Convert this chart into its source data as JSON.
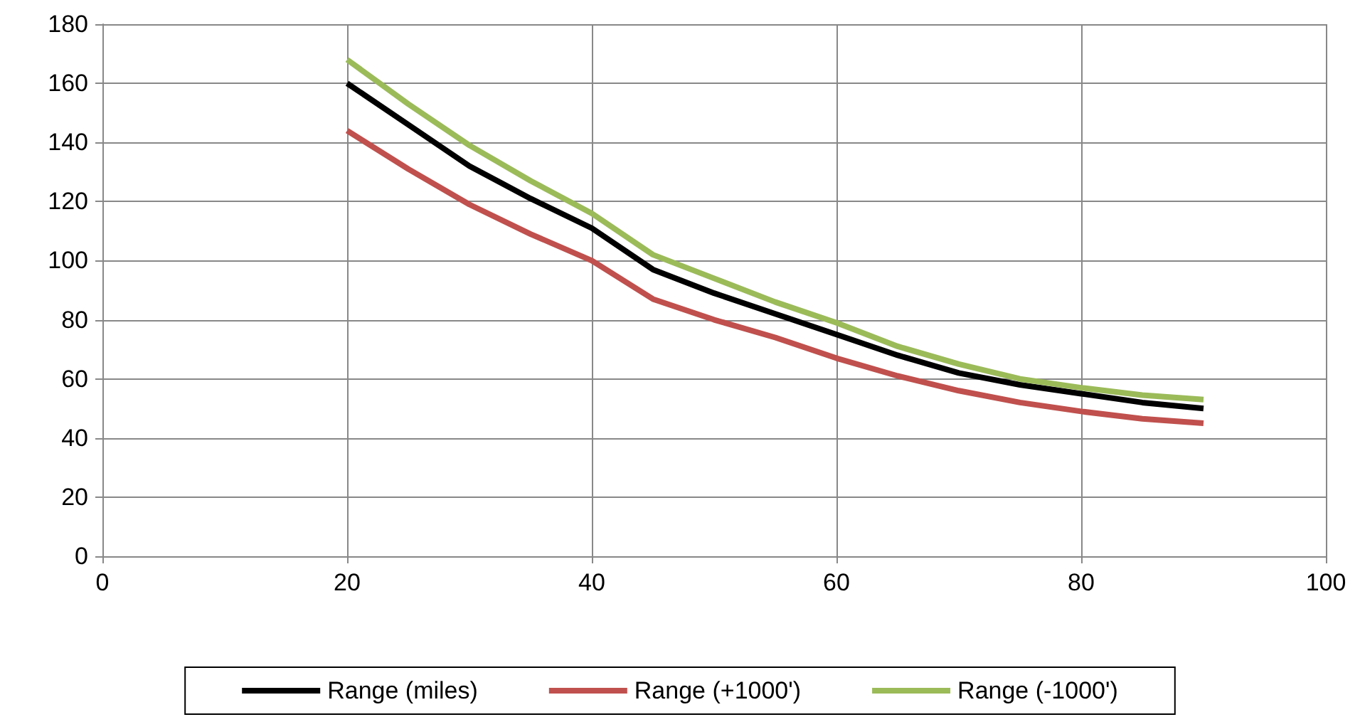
{
  "chart_data": {
    "type": "line",
    "x": [
      20,
      25,
      30,
      35,
      40,
      45,
      50,
      55,
      60,
      65,
      70,
      75,
      80,
      85,
      90
    ],
    "series": [
      {
        "name": "Range (miles)",
        "color": "#000000",
        "values": [
          160,
          146,
          132,
          121,
          111,
          97,
          89,
          82,
          75,
          68,
          62,
          58,
          55,
          52,
          50
        ]
      },
      {
        "name": "Range (+1000')",
        "color": "#c0504d",
        "values": [
          144,
          131,
          119,
          109,
          100,
          87,
          80,
          74,
          67,
          61,
          56,
          52,
          49,
          46.5,
          45
        ]
      },
      {
        "name": "Range (-1000')",
        "color": "#9bbb59",
        "values": [
          168,
          153,
          139,
          127,
          116,
          102,
          94,
          86,
          79,
          71,
          65,
          60,
          57,
          54.5,
          53
        ]
      }
    ],
    "xlim": [
      0,
      100
    ],
    "xticks": [
      0,
      20,
      40,
      60,
      80,
      100
    ],
    "ylim": [
      0,
      180
    ],
    "yticks": [
      0,
      20,
      40,
      60,
      80,
      100,
      120,
      140,
      160,
      180
    ],
    "grid": true,
    "legend": "bottom",
    "marker": "none",
    "line_style": "solid"
  }
}
